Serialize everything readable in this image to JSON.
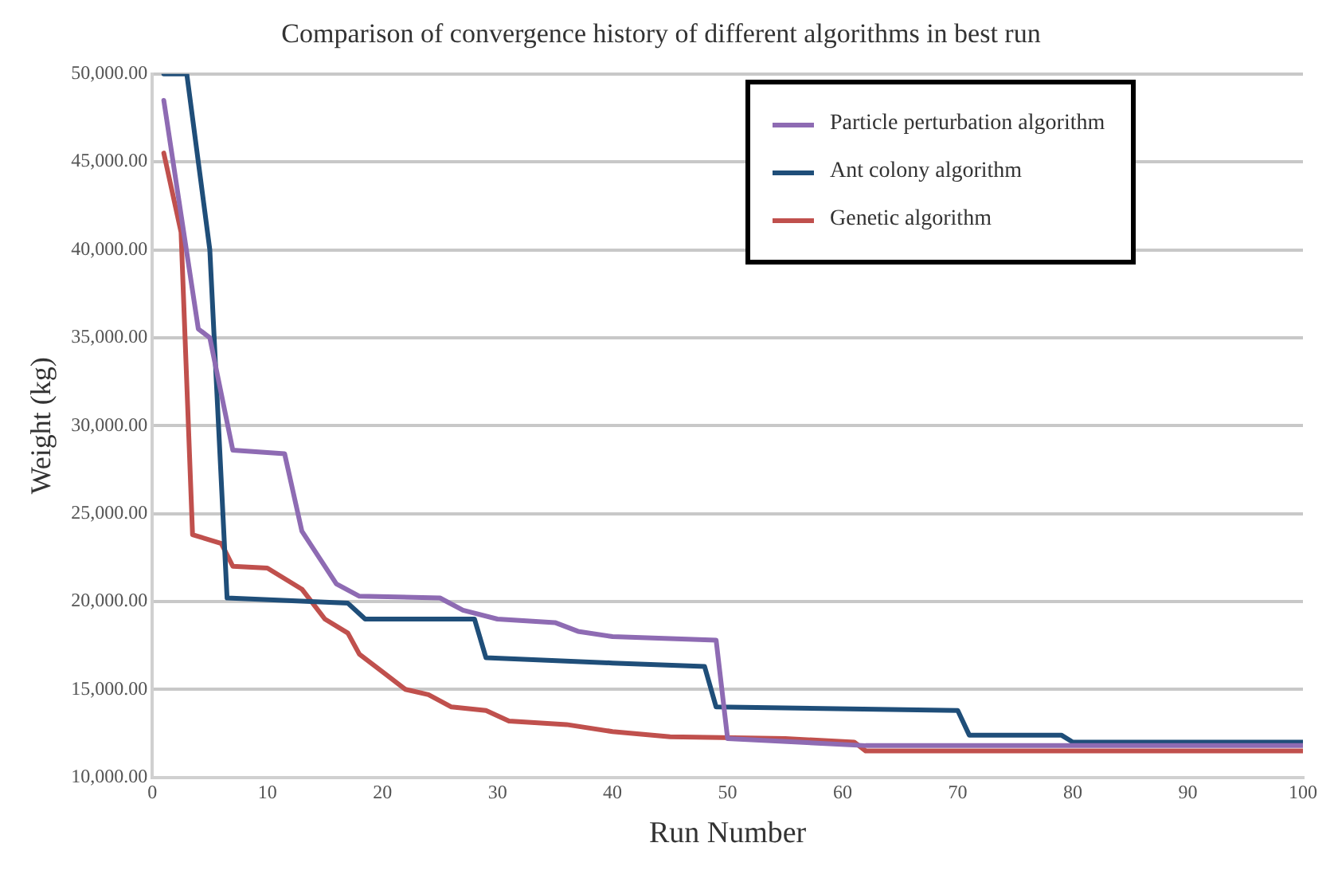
{
  "chart_data": {
    "type": "line",
    "title": "Comparison of convergence history of different algorithms in best run",
    "xlabel": "Run Number",
    "ylabel": "Weight (kg)",
    "xlim": [
      0,
      100
    ],
    "xticks": [
      0,
      10,
      20,
      30,
      40,
      50,
      60,
      70,
      80,
      90,
      100
    ],
    "ylim": [
      10000,
      50000
    ],
    "yticks": [
      {
        "value": 10000,
        "label": "10,000.00"
      },
      {
        "value": 15000,
        "label": "15,000.00"
      },
      {
        "value": 20000,
        "label": "20,000.00"
      },
      {
        "value": 25000,
        "label": "25,000.00"
      },
      {
        "value": 30000,
        "label": "30,000.00"
      },
      {
        "value": 35000,
        "label": "35,000.00"
      },
      {
        "value": 40000,
        "label": "40,000.00"
      },
      {
        "value": 45000,
        "label": "45,000.00"
      },
      {
        "value": 50000,
        "label": "50,000.00"
      }
    ],
    "grid": "y",
    "legend": "top right",
    "marker": "none",
    "line_style": "solid",
    "series": [
      {
        "name": "Particle perturbation algorithm",
        "color": "#8e6bb3",
        "x": [
          1,
          4,
          5,
          7,
          11.5,
          13,
          16,
          18,
          25,
          27,
          30,
          35,
          37,
          40,
          49,
          50,
          62,
          100
        ],
        "values": [
          48500,
          35500,
          35000,
          28600,
          28400,
          24000,
          21000,
          20300,
          20200,
          19500,
          19000,
          18800,
          18300,
          18000,
          17800,
          12200,
          11800,
          11800
        ]
      },
      {
        "name": "Ant colony algorithm",
        "color": "#1f4e79",
        "x": [
          1,
          3,
          5,
          6.5,
          17,
          18.5,
          28,
          29,
          40,
          48,
          49,
          70,
          71,
          79,
          80,
          100
        ],
        "values": [
          50000,
          50000,
          40000,
          20200,
          19900,
          19000,
          19000,
          16800,
          16500,
          16300,
          14000,
          13800,
          12400,
          12400,
          12000,
          12000
        ]
      },
      {
        "name": "Genetic algorithm",
        "color": "#c0504d",
        "x": [
          1,
          2.5,
          3.5,
          6,
          7,
          10,
          13,
          15,
          17,
          18,
          20,
          22,
          24,
          26,
          29,
          31,
          36,
          40,
          45,
          55,
          61,
          62,
          100
        ],
        "values": [
          45500,
          41000,
          23800,
          23300,
          22000,
          21900,
          20700,
          19000,
          18200,
          17000,
          16000,
          15000,
          14700,
          14000,
          13800,
          13200,
          13000,
          12600,
          12300,
          12200,
          12000,
          11500,
          11500
        ]
      }
    ]
  }
}
